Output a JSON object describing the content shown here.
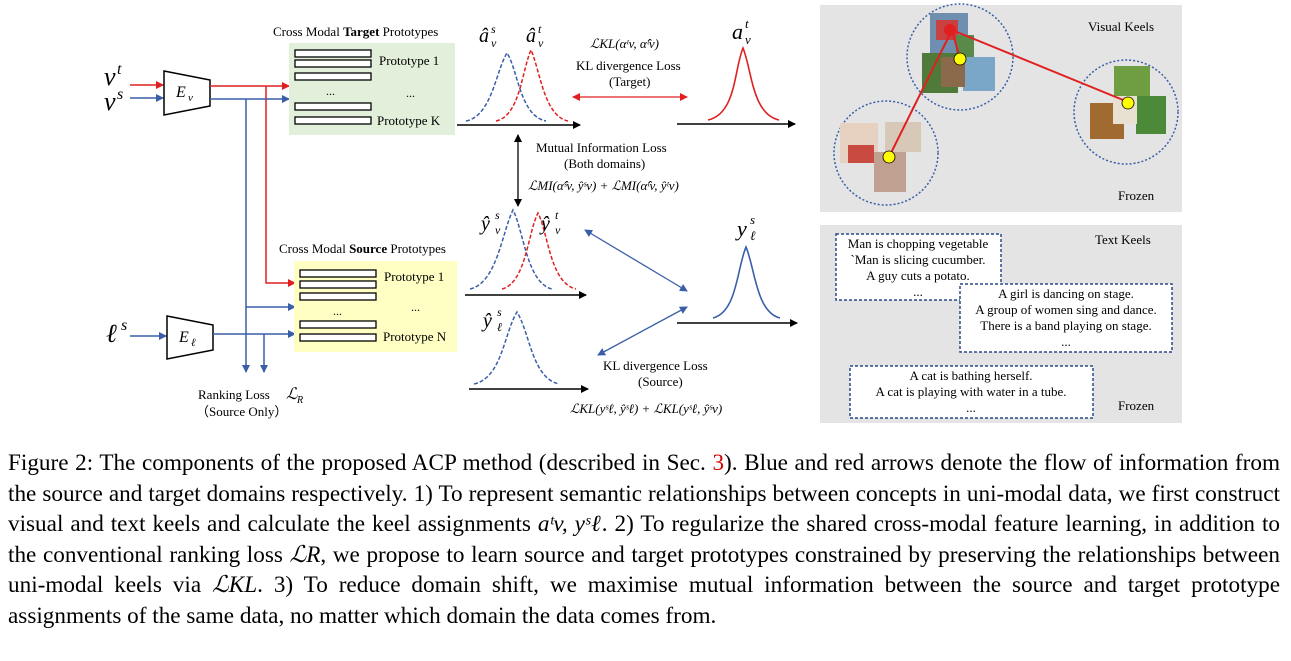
{
  "figure": {
    "encoder_visual": "E",
    "encoder_visual_sub": "v",
    "encoder_text": "E",
    "encoder_text_sub": "ℓ",
    "input_vt": "v",
    "input_vt_sup": "t",
    "input_vs": "v",
    "input_vs_sup": "s",
    "input_ls": "ℓ",
    "input_ls_sup": "s",
    "target_title_pre": "Cross Modal ",
    "target_title_bold": "Target",
    "target_title_post": " Prototypes",
    "target_protos": [
      "Prototype 1",
      "...",
      "Prototype K"
    ],
    "target_dots": "...",
    "source_title_pre": "Cross Modal ",
    "source_title_bold": "Source",
    "source_title_post": " Prototypes",
    "source_protos": [
      "Prototype 1",
      "...",
      "Prototype N"
    ],
    "source_dots": "...",
    "ranking_loss_line1": "Ranking Loss",
    "ranking_loss_symbol": "ℒ",
    "ranking_loss_sub": "R",
    "ranking_loss_line2": "（Source Only）",
    "label_a_hat_vs": "â",
    "label_a_hat_vt": "â",
    "label_a_vt": "a",
    "label_y_hat_vs": "ŷ",
    "label_y_hat_vt": "ŷ",
    "label_y_hat_ls": "ŷ",
    "label_y_ls": "y",
    "kl_target_formula": "ℒKL(αᵗv, α̂ᵗv)",
    "kl_target_line1": "KL divergence Loss",
    "kl_target_line2": "(Target)",
    "mi_line1": "Mutual Information Loss",
    "mi_line2": "(Both domains)",
    "mi_formula": "ℒMI(α̂ˢv, ŷˢv) + ℒMI(α̂ᵗv, ŷᵗv)",
    "kl_source_line1": "KL divergence Loss",
    "kl_source_line2": "(Source)",
    "kl_source_formula": "ℒKL(yˢℓ, ŷˢℓ) + ℒKL(yˢℓ, ŷˢv)",
    "visual_keels_title": "Visual Keels",
    "visual_frozen": "Frozen",
    "text_keels_title": "Text Keels",
    "text_frozen": "Frozen",
    "text_box1": [
      "Man is chopping vegetable",
      "`Man is slicing cucumber.",
      "A guy cuts a potato.",
      "..."
    ],
    "text_box2": [
      "A girl is dancing on stage.",
      "A group of women sing and dance.",
      "There is a band playing on stage.",
      "..."
    ],
    "text_box3": [
      "A cat is bathing herself.",
      "A cat is playing with water in a tube.",
      "..."
    ]
  },
  "caption": {
    "part1": "Figure 2: The components of the proposed ACP method (described in Sec. ",
    "ref": "3",
    "part2": ").  Blue and red arrows denote the flow of information from the source and target domains respectively.  1) To represent semantic relationships between concepts in uni-modal data, we first construct visual and text keels and calculate the keel assignments ",
    "part3": ".  2) To regularize the shared cross-modal feature learning, in addition to the conventional ranking loss ",
    "part4": ", we propose to learn source and target prototypes constrained by preserving the relationships between uni-modal keels via ",
    "part5": ".  3) To reduce domain shift, we maximise mutual information between the source and target prototype assignments of the same data, no matter which domain the data comes from.",
    "math1": "aᵗv, yˢℓ",
    "math2": "ℒR",
    "math3": "ℒKL"
  },
  "colors": {
    "blue": "#3a5fa8",
    "red": "#e02020",
    "target_panel": "#e2efda",
    "source_panel": "#ffffc4",
    "keel_panel": "#e4e4e4"
  }
}
